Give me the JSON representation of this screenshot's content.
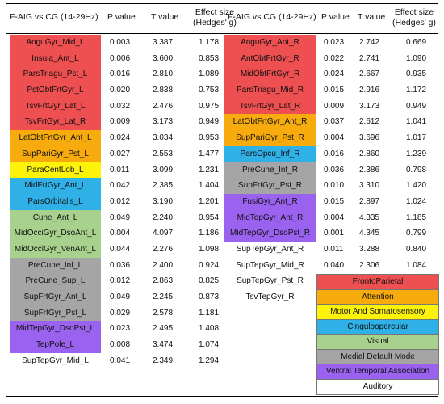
{
  "headers": {
    "left": {
      "title": "F-AIG vs CG (14-29Hz)",
      "p": "P value",
      "t": "T value",
      "es1": "Effect size",
      "es2": "(Hedges' g)"
    },
    "right": {
      "title": "F-AIG vs CG (14-29Hz)",
      "p": "P value",
      "t": "T value",
      "es1": "Effect size",
      "es2": "(Hedges' g)"
    }
  },
  "colors": {
    "FrontoParietal": "#ee4f50",
    "Attention": "#f7ab0c",
    "Motor": "#fdf20a",
    "Cingulo": "#2fb0e6",
    "Visual": "#a9d18e",
    "MDM": "#a5a5a5",
    "VTA": "#9b62f0",
    "Auditory": "#ffffff"
  },
  "left_rows": [
    {
      "name": "AnguGyr_Mid_L",
      "p": "0.003",
      "t": "3.387",
      "es": "1.178",
      "net": "FrontoParietal"
    },
    {
      "name": "Insula_Ant_L",
      "p": "0.006",
      "t": "3.600",
      "es": "0.853",
      "net": "FrontoParietal"
    },
    {
      "name": "ParsTriagu_Pst_L",
      "p": "0.016",
      "t": "2.810",
      "es": "1.089",
      "net": "FrontoParietal"
    },
    {
      "name": "PstObtFrtGyr_L",
      "p": "0.020",
      "t": "2.838",
      "es": "0.753",
      "net": "FrontoParietal"
    },
    {
      "name": "TsvFrtGyr_Lat_L",
      "p": "0.032",
      "t": "2.476",
      "es": "0.975",
      "net": "FrontoParietal"
    },
    {
      "name": "TsvFrtGyr_Lat_R",
      "p": "0.009",
      "t": "3.173",
      "es": "0.949",
      "net": "FrontoParietal"
    },
    {
      "name": "LatObtFrtGyr_Ant_L",
      "p": "0.024",
      "t": "3.034",
      "es": "0.953",
      "net": "Attention"
    },
    {
      "name": "SupPariGyr_Pst_L",
      "p": "0.027",
      "t": "2.553",
      "es": "1.477",
      "net": "Attention"
    },
    {
      "name": "ParaCentLob_L",
      "p": "0.011",
      "t": "3.099",
      "es": "1.231",
      "net": "Motor"
    },
    {
      "name": "MidFrtGyr_Ant_L",
      "p": "0.042",
      "t": "2.385",
      "es": "1.404",
      "net": "Cingulo"
    },
    {
      "name": "ParsOrbitalis_L",
      "p": "0.012",
      "t": "3.190",
      "es": "1.201",
      "net": "Cingulo"
    },
    {
      "name": "Cune_Ant_L",
      "p": "0.049",
      "t": "2.240",
      "es": "0.954",
      "net": "Visual"
    },
    {
      "name": "MidOcciGyr_DsoAnt_L",
      "p": "0.004",
      "t": "4.097",
      "es": "1.186",
      "net": "Visual"
    },
    {
      "name": "MidOcciGyr_VenAnt_L",
      "p": "0.044",
      "t": "2.276",
      "es": "1.098",
      "net": "Visual"
    },
    {
      "name": "PreCune_Inf_L",
      "p": "0.036",
      "t": "2.400",
      "es": "0.924",
      "net": "MDM"
    },
    {
      "name": "PreCune_Sup_L",
      "p": "0.012",
      "t": "2.863",
      "es": "0.825",
      "net": "MDM"
    },
    {
      "name": "SupFrtGyr_Ant_L",
      "p": "0.049",
      "t": "2.245",
      "es": "0.873",
      "net": "MDM"
    },
    {
      "name": "SupFrtGyr_Pst_L",
      "p": "0.029",
      "t": "2.578",
      "es": "1.181",
      "net": "MDM"
    },
    {
      "name": "MidTepGyr_DsoPst_L",
      "p": "0.023",
      "t": "2.495",
      "es": "1.408",
      "net": "VTA"
    },
    {
      "name": "TepPole_L",
      "p": "0.008",
      "t": "3.474",
      "es": "1.074",
      "net": "VTA"
    },
    {
      "name": "SupTepGyr_Mid_L",
      "p": "0.041",
      "t": "2.349",
      "es": "1.294",
      "net": "Auditory"
    }
  ],
  "right_rows": [
    {
      "name": "AnguGyr_Ant_R",
      "p": "0.023",
      "t": "2.742",
      "es": "0.669",
      "net": "FrontoParietal"
    },
    {
      "name": "AntObtFrtGyr_R",
      "p": "0.022",
      "t": "2.741",
      "es": "1.090",
      "net": "FrontoParietal"
    },
    {
      "name": "MidObtFrtGyr_R",
      "p": "0.024",
      "t": "2.667",
      "es": "0.935",
      "net": "FrontoParietal"
    },
    {
      "name": "ParsTriagu_Mid_R",
      "p": "0.015",
      "t": "2.916",
      "es": "1.172",
      "net": "FrontoParietal"
    },
    {
      "name": "TsvFrtGyr_Lat_R",
      "p": "0.009",
      "t": "3.173",
      "es": "0.949",
      "net": "FrontoParietal"
    },
    {
      "name": "LatObtFrtGyr_Ant_R",
      "p": "0.037",
      "t": "2.612",
      "es": "1.041",
      "net": "Attention"
    },
    {
      "name": "SupPariGyr_Pst_R",
      "p": "0.004",
      "t": "3.696",
      "es": "1.017",
      "net": "Attention"
    },
    {
      "name": "ParsOpcu_Inf_R",
      "p": "0.016",
      "t": "2.860",
      "es": "1.239",
      "net": "Cingulo"
    },
    {
      "name": "PreCune_Inf_R",
      "p": "0.036",
      "t": "2.386",
      "es": "0.798",
      "net": "MDM"
    },
    {
      "name": "SupFrtGyr_Pst_R",
      "p": "0.010",
      "t": "3.310",
      "es": "1.420",
      "net": "MDM"
    },
    {
      "name": "FusiGyr_Ant_R",
      "p": "0.015",
      "t": "2.897",
      "es": "1.024",
      "net": "VTA"
    },
    {
      "name": "MidTepGyr_Ant_R",
      "p": "0.004",
      "t": "4.335",
      "es": "1.185",
      "net": "VTA"
    },
    {
      "name": "MidTepGyr_DsoPst_R",
      "p": "0.001",
      "t": "4.345",
      "es": "0.799",
      "net": "VTA"
    },
    {
      "name": "SupTepGyr_Ant_R",
      "p": "0.011",
      "t": "3.288",
      "es": "0.840",
      "net": "Auditory"
    },
    {
      "name": "SupTepGyr_Mid_R",
      "p": "0.040",
      "t": "2.306",
      "es": "1.084",
      "net": "Auditory"
    },
    {
      "name": "SupTepGyr_Pst_R",
      "p": "0.020",
      "t": "2.607",
      "es": "1.176",
      "net": "Auditory"
    },
    {
      "name": "TsvTepGyr_R",
      "p": "0.010",
      "t": "3.021",
      "es": "1.142",
      "net": "Auditory"
    }
  ],
  "legend": [
    {
      "label": "FrontoParietal",
      "net": "FrontoParietal"
    },
    {
      "label": "Attention",
      "net": "Attention"
    },
    {
      "label": "Motor And Somatosensory",
      "net": "Motor"
    },
    {
      "label": "Cinguloopercular",
      "net": "Cingulo"
    },
    {
      "label": "Visual",
      "net": "Visual"
    },
    {
      "label": "Medial Default Mode",
      "net": "MDM"
    },
    {
      "label": "Ventral Temporal Association",
      "net": "VTA"
    },
    {
      "label": "Auditory",
      "net": "Auditory"
    }
  ]
}
